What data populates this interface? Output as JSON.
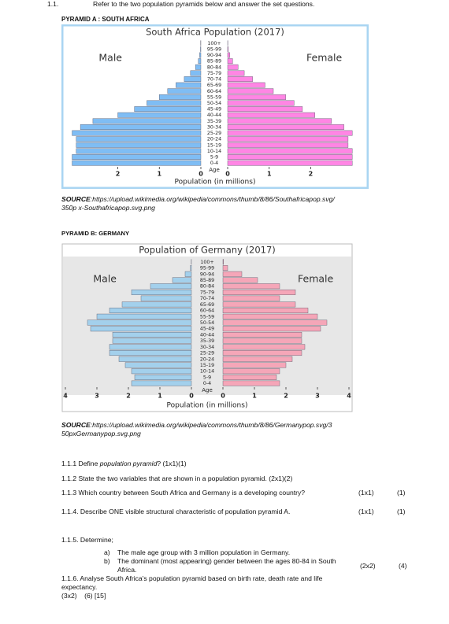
{
  "header": {
    "number": "1.1.",
    "instruction": "Refer to the two population pyramids below and answer the set questions."
  },
  "pyramid_a": {
    "label": "PYRAMID A   : SOUTH AFRICA",
    "chart": {
      "type": "population_pyramid",
      "title": "South Africa Population (2017)",
      "age_axis_title": "Age",
      "x_axis_title": "Population (in millions)",
      "categories": [
        "100+",
        "95-99",
        "90-94",
        "85-89",
        "80-84",
        "75-79",
        "70-74",
        "65-69",
        "60-64",
        "55-59",
        "50-54",
        "45-49",
        "40-44",
        "35-39",
        "30-34",
        "25-29",
        "20-24",
        "15-19",
        "10-14",
        "5-9",
        "0-4"
      ],
      "series": [
        {
          "name": "Male",
          "color": "#7fbdf4",
          "values": [
            0.005,
            0.01,
            0.03,
            0.06,
            0.13,
            0.25,
            0.4,
            0.6,
            0.8,
            1.0,
            1.3,
            1.6,
            2.0,
            2.6,
            2.9,
            3.1,
            3.0,
            3.0,
            3.0,
            3.1,
            3.1
          ]
        },
        {
          "name": "Female",
          "color": "#ff86e4",
          "values": [
            0.005,
            0.015,
            0.05,
            0.12,
            0.25,
            0.4,
            0.6,
            0.9,
            1.1,
            1.4,
            1.6,
            1.8,
            2.1,
            2.5,
            2.8,
            3.0,
            2.9,
            2.9,
            3.0,
            3.0,
            3.0
          ]
        }
      ],
      "xlim": [
        0,
        3.3
      ],
      "xticks": [
        0,
        1,
        2
      ]
    },
    "source_label": "SOURCE",
    "source_lines": [
      ":https://upload.wikimedia.org/wikipedia/commons/thumb/8/86/Southafricapop.svg/",
      "350p x-Southafricapop.svg.png"
    ]
  },
  "pyramid_b": {
    "label": "PYRAMID    B: GERMANY",
    "chart": {
      "type": "population_pyramid",
      "title": "Population of Germany (2017)",
      "age_axis_title": "Age",
      "x_axis_title": "Population (in millions)",
      "categories": [
        "100+",
        "95-99",
        "90-94",
        "85-89",
        "80-84",
        "75-79",
        "70-74",
        "65-69",
        "60-64",
        "55-59",
        "50-54",
        "45-49",
        "40-44",
        "35-39",
        "30-34",
        "25-29",
        "20-24",
        "15-19",
        "10-14",
        "5-9",
        "0-4"
      ],
      "series": [
        {
          "name": "Male",
          "color": "#a3d0ec",
          "values": [
            0.005,
            0.03,
            0.2,
            0.6,
            1.3,
            1.9,
            1.6,
            2.2,
            2.6,
            3.0,
            3.3,
            3.2,
            2.5,
            2.5,
            2.6,
            2.6,
            2.3,
            2.1,
            1.9,
            1.8,
            1.9
          ]
        },
        {
          "name": "Female",
          "color": "#f5a6b8",
          "values": [
            0.02,
            0.15,
            0.6,
            1.1,
            1.8,
            2.3,
            1.8,
            2.3,
            2.7,
            3.0,
            3.3,
            3.1,
            2.5,
            2.5,
            2.6,
            2.5,
            2.2,
            2.0,
            1.8,
            1.7,
            1.8
          ]
        }
      ],
      "xlim": [
        0,
        4
      ],
      "xticks": [
        0,
        1,
        2,
        3,
        4
      ]
    },
    "source_label": "SOURCE",
    "source_lines": [
      ":https://upload.wikimedia.org/wikipedia/commons/thumb/8/86/Germanypop.svg/3",
      "50pxGermanypop.svg.png"
    ]
  },
  "questions": {
    "q1": {
      "prefix": "1.1.1 Define ",
      "term": "population pyramid",
      "suffix": "? (1x1)(1)"
    },
    "q2": {
      "text": "1.1.2 State the two variables that are shown in a population pyramid. (2x1)(2)"
    },
    "q3": {
      "text": "1.1.3 Which country between South Africa and Germany is a developing country?",
      "allocation": "(1x1)",
      "marks": "(1)"
    },
    "q4": {
      "text": "1.1.4.  Describe ONE visible structural characteristic of population pyramid A.",
      "allocation": "(1x1)",
      "marks": "(1)"
    },
    "q5": {
      "text": "1.1.5.  Determine;",
      "items": [
        {
          "letter": "a)",
          "text": "The male age group with 3 million population in Germany."
        },
        {
          "letter": "b)",
          "text": "The dominant (most appearing) gender between the ages 80-84 in South Africa."
        }
      ],
      "allocation": "(2x2)",
      "marks": "(4)"
    },
    "q6": {
      "text": "1.1.6. Analyse South Africa's population pyramid based on birth rate, death rate and life expectancy.",
      "marks": "(3x2)    (6) [15]"
    }
  }
}
